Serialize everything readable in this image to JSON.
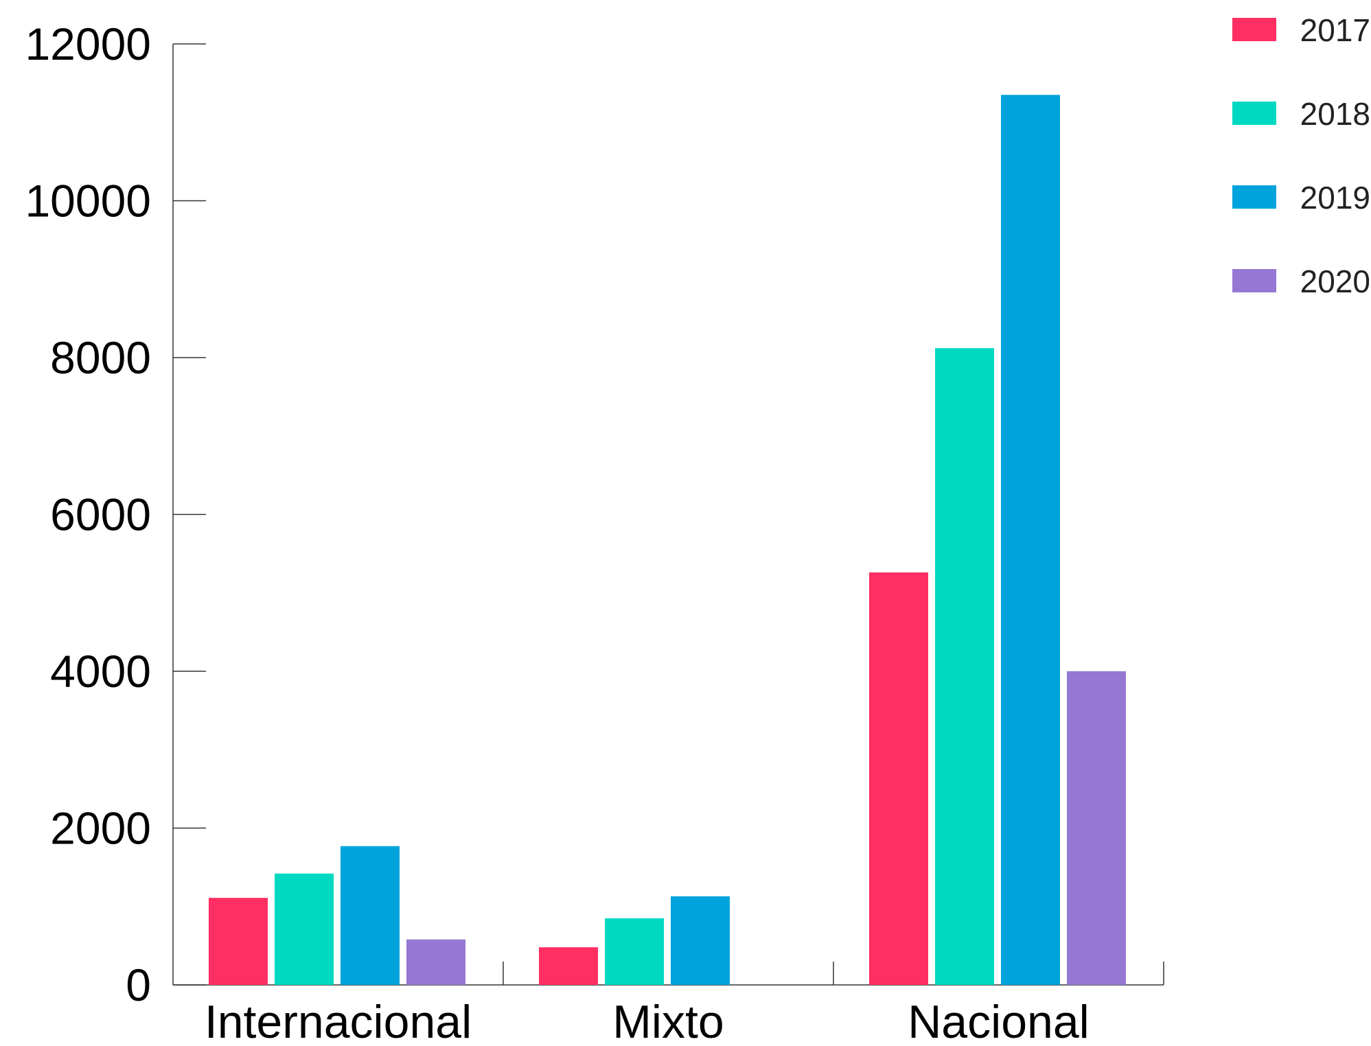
{
  "chart_data": {
    "type": "bar",
    "title": "",
    "xlabel": "",
    "ylabel": "",
    "categories": [
      "Internacional",
      "Mixto",
      "Nacional"
    ],
    "series": [
      {
        "name": "2017",
        "color": "#FF2E63",
        "values": [
          1110,
          480,
          5260
        ]
      },
      {
        "name": "2018",
        "color": "#00D9C1",
        "values": [
          1420,
          850,
          8120
        ]
      },
      {
        "name": "2019",
        "color": "#00A3DC",
        "values": [
          1770,
          1130,
          11350
        ]
      },
      {
        "name": "2020",
        "color": "#9578D3",
        "values": [
          580,
          0,
          4000
        ]
      }
    ],
    "ylim": [
      0,
      12000
    ],
    "yticks": [
      0,
      2000,
      4000,
      6000,
      8000,
      10000,
      12000
    ],
    "legend_position": "top-right",
    "grid": false
  }
}
